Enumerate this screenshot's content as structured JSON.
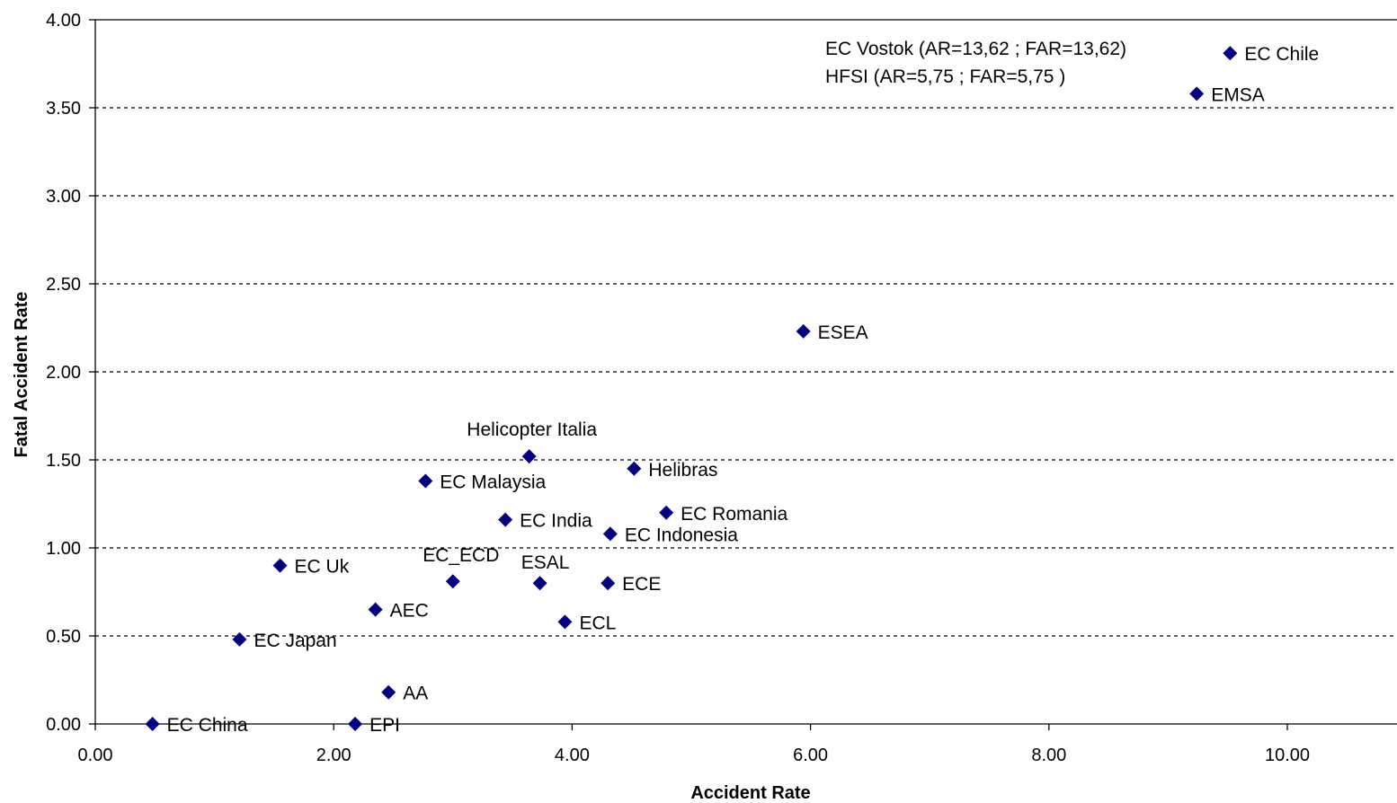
{
  "chart_data": {
    "type": "scatter",
    "xlabel": "Accident Rate",
    "ylabel": "Fatal Accident Rate",
    "xlim": [
      0,
      10.7
    ],
    "ylim": [
      0,
      4.0
    ],
    "x_ticks": [
      "0.00",
      "2.00",
      "4.00",
      "6.00",
      "8.00",
      "10.00"
    ],
    "y_ticks": [
      "0.00",
      "0.50",
      "1.00",
      "1.50",
      "2.00",
      "2.50",
      "3.00",
      "3.50",
      "4.00"
    ],
    "grid": "horizontal-dashed",
    "marker": "diamond",
    "marker_color": "#000080",
    "annotations": [
      "EC Vostok (AR=13,62 ; FAR=13,62)",
      "HFSI (AR=5,75 ; FAR=5,75 )"
    ],
    "points": [
      {
        "label": "EC Chile",
        "x": 9.52,
        "y": 3.81
      },
      {
        "label": "EMSA",
        "x": 9.24,
        "y": 3.58
      },
      {
        "label": "ESEA",
        "x": 5.94,
        "y": 2.23
      },
      {
        "label": "Helicopter Italia",
        "x": 3.64,
        "y": 1.52
      },
      {
        "label": "Helibras",
        "x": 4.52,
        "y": 1.45
      },
      {
        "label": "EC Malaysia",
        "x": 2.77,
        "y": 1.38
      },
      {
        "label": "EC Romania",
        "x": 4.79,
        "y": 1.2
      },
      {
        "label": "EC India",
        "x": 3.44,
        "y": 1.16
      },
      {
        "label": "EC Indonesia",
        "x": 4.32,
        "y": 1.08
      },
      {
        "label": "EC Uk",
        "x": 1.55,
        "y": 0.9
      },
      {
        "label": "EC_ECD",
        "x": 3.0,
        "y": 0.81
      },
      {
        "label": "ESAL",
        "x": 3.73,
        "y": 0.8
      },
      {
        "label": "ECE",
        "x": 4.3,
        "y": 0.8
      },
      {
        "label": "AEC",
        "x": 2.35,
        "y": 0.65
      },
      {
        "label": "ECL",
        "x": 3.94,
        "y": 0.58
      },
      {
        "label": "EC Japan",
        "x": 1.21,
        "y": 0.48
      },
      {
        "label": "AA",
        "x": 2.46,
        "y": 0.18
      },
      {
        "label": "EC China",
        "x": 0.48,
        "y": 0.0
      },
      {
        "label": "EPI",
        "x": 2.18,
        "y": 0.0
      }
    ]
  }
}
